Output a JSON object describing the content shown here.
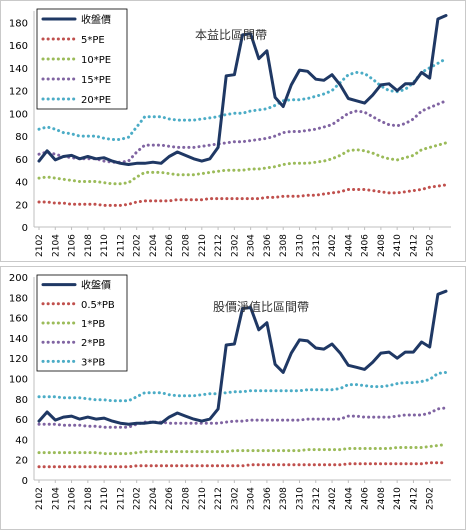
{
  "chart_data": [
    {
      "type": "line",
      "title": "本益比區間帶",
      "ylim": [
        0,
        190
      ],
      "yticks": [
        0,
        20,
        40,
        60,
        80,
        100,
        120,
        140,
        160,
        180
      ],
      "grid": false,
      "legend": "top-left",
      "x_tick_labels": [
        "2102",
        "2104",
        "2106",
        "2108",
        "2110",
        "2112",
        "2202",
        "2204",
        "2206",
        "2208",
        "2210",
        "2212",
        "2302",
        "2304",
        "2306",
        "2308",
        "2310",
        "2312",
        "2402",
        "2404",
        "2406",
        "2408",
        "2410",
        "2412",
        "2502"
      ],
      "series": [
        {
          "name": "收盤價",
          "color": "#1f3864",
          "style": "solid",
          "values": [
            58,
            67,
            59,
            62,
            63,
            60,
            62,
            60,
            61,
            58,
            56,
            55,
            56,
            56,
            57,
            56,
            62,
            66,
            63,
            60,
            58,
            60,
            70,
            133,
            134,
            169,
            170,
            148,
            155,
            114,
            106,
            125,
            138,
            137,
            130,
            129,
            134,
            125,
            113,
            111,
            109,
            116,
            125,
            126,
            120,
            126,
            126,
            136,
            131,
            183,
            186
          ]
        },
        {
          "name": "5*PE",
          "color": "#c0504d",
          "style": "dotted",
          "values": [
            22,
            22,
            21,
            21,
            20,
            20,
            20,
            20,
            19,
            19,
            19,
            20,
            22,
            23,
            23,
            23,
            23,
            24,
            24,
            24,
            24,
            25,
            25,
            25,
            25,
            25,
            25,
            25,
            26,
            26,
            27,
            27,
            27,
            28,
            28,
            29,
            30,
            31,
            33,
            33,
            33,
            32,
            31,
            30,
            30,
            31,
            32,
            33,
            35,
            36,
            37
          ]
        },
        {
          "name": "10*PE",
          "color": "#9bbb59",
          "style": "dotted",
          "values": [
            43,
            44,
            43,
            42,
            41,
            40,
            40,
            40,
            39,
            38,
            38,
            39,
            44,
            48,
            48,
            48,
            47,
            46,
            46,
            46,
            47,
            48,
            49,
            50,
            50,
            50,
            51,
            51,
            52,
            53,
            55,
            56,
            56,
            56,
            57,
            58,
            60,
            63,
            67,
            68,
            67,
            65,
            62,
            60,
            59,
            61,
            63,
            68,
            70,
            72,
            74
          ]
        },
        {
          "name": "15*PE",
          "color": "#8064a2",
          "style": "dotted",
          "values": [
            64,
            66,
            64,
            62,
            61,
            60,
            60,
            60,
            58,
            57,
            57,
            58,
            66,
            72,
            72,
            72,
            71,
            70,
            70,
            70,
            71,
            72,
            73,
            74,
            75,
            75,
            76,
            77,
            78,
            80,
            83,
            84,
            84,
            85,
            86,
            88,
            90,
            95,
            100,
            102,
            101,
            97,
            93,
            90,
            89,
            91,
            95,
            102,
            105,
            108,
            111
          ]
        },
        {
          "name": "20*PE",
          "color": "#4bacc6",
          "style": "dotted",
          "values": [
            86,
            88,
            86,
            83,
            82,
            80,
            80,
            80,
            78,
            77,
            77,
            79,
            88,
            97,
            97,
            97,
            95,
            94,
            94,
            94,
            95,
            96,
            97,
            99,
            100,
            100,
            102,
            103,
            104,
            107,
            111,
            112,
            112,
            113,
            115,
            117,
            120,
            127,
            134,
            136,
            135,
            130,
            124,
            120,
            119,
            121,
            127,
            136,
            140,
            144,
            148
          ]
        }
      ]
    },
    {
      "type": "line",
      "title": "股價淨值比區間帶",
      "ylim": [
        0,
        190
      ],
      "yticks": [
        0,
        20,
        40,
        60,
        80,
        100,
        120,
        140,
        160,
        180,
        200
      ],
      "grid": false,
      "legend": "top-left",
      "x_tick_labels": [
        "2102",
        "2104",
        "2106",
        "2108",
        "2110",
        "2112",
        "2202",
        "2204",
        "2206",
        "2208",
        "2210",
        "2212",
        "2302",
        "2304",
        "2306",
        "2308",
        "2310",
        "2312",
        "2402",
        "2404",
        "2406",
        "2408",
        "2410",
        "2412",
        "2502"
      ],
      "series": [
        {
          "name": "收盤價",
          "color": "#1f3864",
          "style": "solid",
          "values": [
            58,
            67,
            59,
            62,
            63,
            60,
            62,
            60,
            61,
            58,
            56,
            55,
            56,
            56,
            57,
            56,
            62,
            66,
            63,
            60,
            58,
            60,
            70,
            133,
            134,
            169,
            170,
            148,
            155,
            114,
            106,
            125,
            138,
            137,
            130,
            129,
            134,
            125,
            113,
            111,
            109,
            116,
            125,
            126,
            120,
            126,
            126,
            136,
            131,
            183,
            186
          ]
        },
        {
          "name": "0.5*PB",
          "color": "#c0504d",
          "style": "dotted",
          "values": [
            13,
            13,
            13,
            13,
            13,
            13,
            13,
            13,
            13,
            13,
            13,
            13,
            14,
            14,
            14,
            14,
            14,
            14,
            14,
            14,
            14,
            14,
            14,
            14,
            14,
            14,
            15,
            15,
            15,
            15,
            15,
            15,
            15,
            15,
            15,
            15,
            15,
            15,
            16,
            16,
            16,
            16,
            16,
            16,
            16,
            16,
            16,
            16,
            17,
            17,
            17
          ]
        },
        {
          "name": "1*PB",
          "color": "#9bbb59",
          "style": "dotted",
          "values": [
            27,
            27,
            27,
            27,
            27,
            27,
            27,
            27,
            26,
            26,
            26,
            26,
            27,
            28,
            28,
            28,
            28,
            28,
            28,
            28,
            28,
            28,
            28,
            28,
            29,
            29,
            29,
            29,
            29,
            29,
            29,
            29,
            29,
            30,
            30,
            30,
            30,
            30,
            31,
            31,
            31,
            31,
            31,
            31,
            32,
            32,
            32,
            32,
            33,
            34,
            35
          ]
        },
        {
          "name": "2*PB",
          "color": "#8064a2",
          "style": "dotted",
          "values": [
            55,
            55,
            55,
            54,
            54,
            54,
            53,
            53,
            52,
            52,
            52,
            52,
            55,
            57,
            57,
            57,
            56,
            56,
            56,
            56,
            56,
            56,
            56,
            57,
            58,
            58,
            59,
            59,
            59,
            59,
            59,
            59,
            59,
            60,
            60,
            60,
            60,
            60,
            63,
            63,
            62,
            62,
            62,
            62,
            63,
            64,
            64,
            64,
            66,
            70,
            71
          ]
        },
        {
          "name": "3*PB",
          "color": "#4bacc6",
          "style": "dotted",
          "values": [
            82,
            82,
            82,
            81,
            81,
            81,
            80,
            79,
            79,
            78,
            78,
            78,
            82,
            86,
            86,
            86,
            84,
            83,
            83,
            83,
            84,
            85,
            85,
            86,
            87,
            87,
            88,
            88,
            88,
            88,
            88,
            88,
            88,
            89,
            89,
            89,
            89,
            90,
            94,
            94,
            93,
            92,
            92,
            93,
            95,
            96,
            96,
            97,
            99,
            105,
            106
          ]
        }
      ]
    }
  ]
}
